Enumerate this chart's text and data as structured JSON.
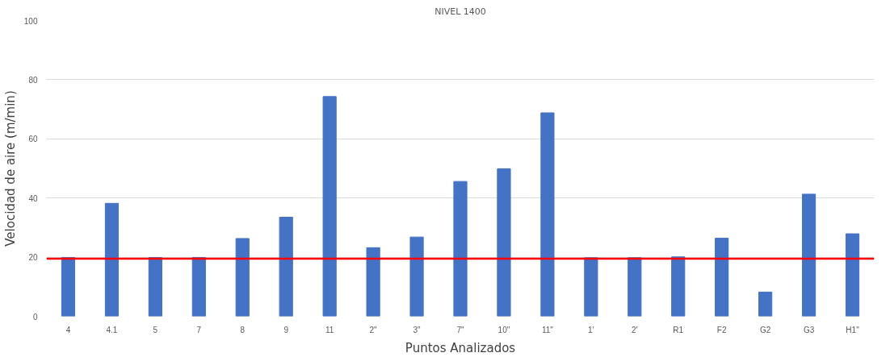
{
  "chart_data": {
    "type": "bar",
    "title": "NIVEL 1400",
    "xlabel": "Puntos Analizados",
    "ylabel": "Velocidad de aire (m/min)",
    "categories": [
      "4",
      "4.1",
      "5",
      "7",
      "8",
      "9",
      "11",
      "2\"",
      "3\"",
      "7\"",
      "10\"",
      "11\"",
      "1'",
      "2'",
      "R1",
      "F2",
      "G2",
      "G3",
      "H1\""
    ],
    "values": [
      19.9,
      38.2,
      19.9,
      19.9,
      26.3,
      33.5,
      74.3,
      23.2,
      26.8,
      45.6,
      49.9,
      68.8,
      19.8,
      19.8,
      20.1,
      26.4,
      8.2,
      41.3,
      27.9
    ],
    "color": "#4472c4",
    "ylim": [
      0,
      100
    ],
    "yticks": [
      0,
      20,
      40,
      60,
      80,
      100
    ],
    "grid": "y",
    "ref_lines": [
      {
        "axis": "y",
        "value": 19.5,
        "color": "#ff0000"
      }
    ]
  }
}
